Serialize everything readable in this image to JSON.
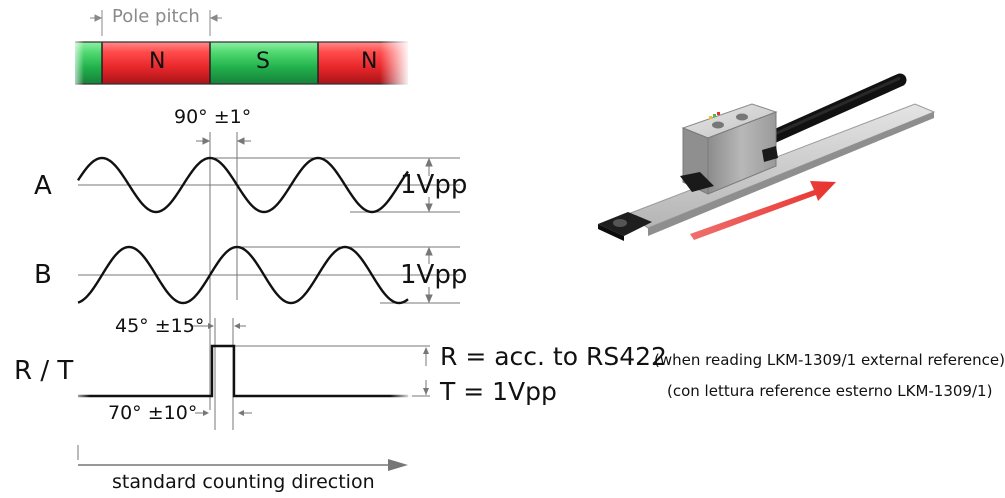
{
  "labels": {
    "pole_pitch": "Pole pitch",
    "magnets": [
      "N",
      "S",
      "N"
    ],
    "phase_ab": "90° ±1°",
    "channel_a": "A",
    "channel_b": "B",
    "amp_a": "1Vpp",
    "amp_b": "1Vpp",
    "ref_top_angle": "45° ±15°",
    "ref_bottom_angle": "70° ±10°",
    "channel_rt": "R / T",
    "r_spec": "R = acc. to RS422",
    "t_spec": "T = 1Vpp",
    "note_en": "(when reading LKM-1309/1 external reference)",
    "note_it": "(con lettura reference esterno LKM-1309/1)",
    "direction": "standard counting direction"
  },
  "colors": {
    "north": "#e8272b",
    "south": "#22b24c",
    "arrow": "#e8322e",
    "dim": "#777777"
  }
}
